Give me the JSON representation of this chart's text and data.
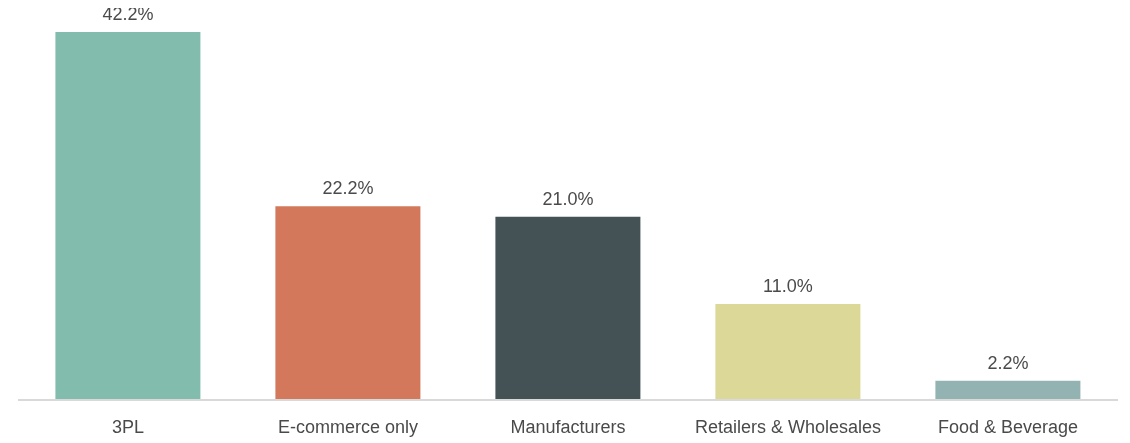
{
  "chart_data": {
    "type": "bar",
    "categories": [
      "3PL",
      "E-commerce only",
      "Manufacturers",
      "Retailers & Wholesales",
      "Food & Beverage"
    ],
    "values": [
      42.2,
      22.2,
      21.0,
      11.0,
      2.2
    ],
    "colors": [
      "#82bcad",
      "#d3785a",
      "#445256",
      "#dcd897",
      "#93b2b2"
    ],
    "value_labels": [
      "42.2%",
      "22.2%",
      "21.0%",
      "11.0%",
      "2.2%"
    ],
    "grid": false,
    "legend": false
  }
}
